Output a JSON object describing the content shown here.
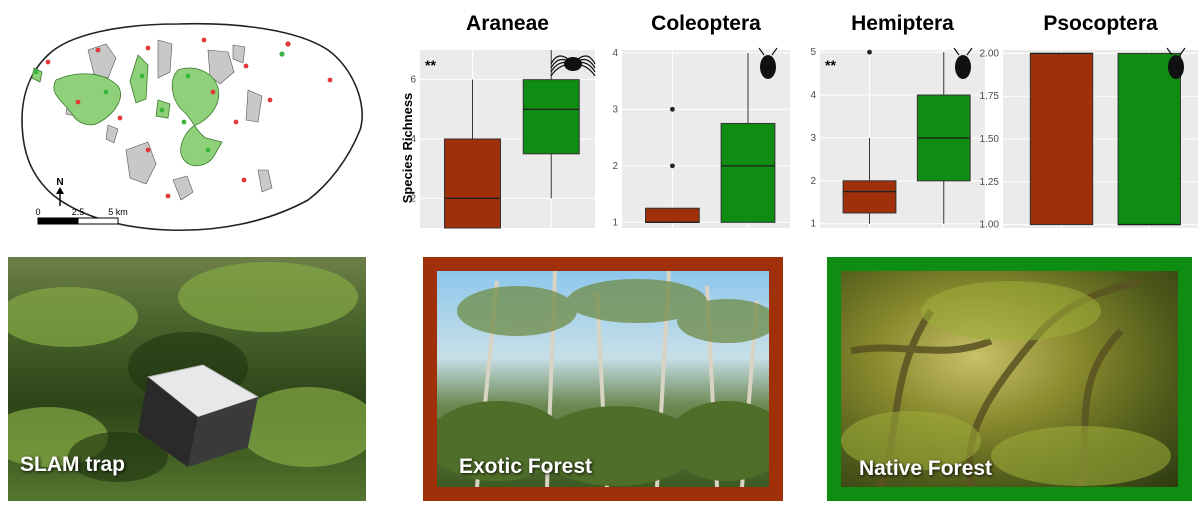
{
  "map": {
    "north_label": "N",
    "scale_labels": [
      "0",
      "2.5",
      "5 km"
    ]
  },
  "chart_data": [
    {
      "type": "box",
      "title": "Araneae",
      "ylabel": "Species Richness",
      "significance": "**",
      "ylim": [
        1,
        7
      ],
      "yticks": [
        2,
        4,
        6
      ],
      "colors": [
        "#a0300a",
        "#0f8c12"
      ],
      "groups": [
        {
          "min": 1,
          "q1": 1,
          "median": 2,
          "q3": 4,
          "max": 6,
          "outliers": []
        },
        {
          "min": 2,
          "q1": 3.5,
          "median": 5,
          "q3": 6,
          "max": 7,
          "outliers": []
        }
      ],
      "icon": "spider-icon"
    },
    {
      "type": "box",
      "title": "Coleoptera",
      "ylabel": "",
      "significance": "",
      "ylim": [
        0.9,
        4.05
      ],
      "yticks": [
        1,
        2,
        3,
        4
      ],
      "colors": [
        "#a0300a",
        "#0f8c12"
      ],
      "groups": [
        {
          "min": 1,
          "q1": 1,
          "median": 1,
          "q3": 1.25,
          "max": 1.25,
          "outliers": [
            2,
            3
          ]
        },
        {
          "min": 1,
          "q1": 1,
          "median": 2,
          "q3": 2.75,
          "max": 4,
          "outliers": []
        }
      ],
      "icon": "beetle-icon"
    },
    {
      "type": "box",
      "title": "Hemiptera",
      "ylabel": "",
      "significance": "**",
      "ylim": [
        0.9,
        5.05
      ],
      "yticks": [
        1,
        2,
        3,
        4,
        5
      ],
      "colors": [
        "#a0300a",
        "#0f8c12"
      ],
      "groups": [
        {
          "min": 1,
          "q1": 1.25,
          "median": 1.75,
          "q3": 2,
          "max": 3,
          "outliers": [
            5
          ]
        },
        {
          "min": 1,
          "q1": 2,
          "median": 3,
          "q3": 4,
          "max": 5,
          "outliers": []
        }
      ],
      "icon": "bug-icon"
    },
    {
      "type": "box",
      "title": "Psocoptera",
      "ylabel": "",
      "significance": "",
      "ylim": [
        0.98,
        2.02
      ],
      "yticks": [
        1.0,
        1.25,
        1.5,
        1.75,
        2.0
      ],
      "ytick_labels": [
        "1.00",
        "1.25",
        "1.50",
        "1.75",
        "2.00"
      ],
      "colors": [
        "#a0300a",
        "#0f8c12"
      ],
      "groups": [
        {
          "min": 1,
          "q1": 1,
          "median": 2,
          "q3": 2,
          "max": 2,
          "outliers": []
        },
        {
          "min": 1,
          "q1": 1,
          "median": 1,
          "q3": 2,
          "max": 2,
          "outliers": []
        }
      ],
      "icon": "psocid-icon"
    }
  ],
  "photos": [
    {
      "label": "SLAM trap"
    },
    {
      "label": "Exotic Forest",
      "frame_color": "#a0300a"
    },
    {
      "label": "Native Forest",
      "frame_color": "#0f8c12"
    }
  ]
}
